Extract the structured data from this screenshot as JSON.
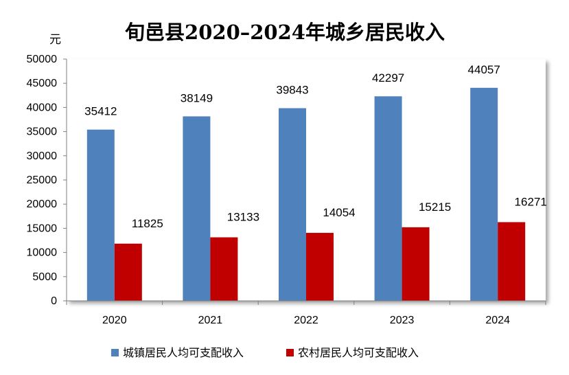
{
  "chart_data": {
    "type": "bar",
    "title": "旬邑县2020–2024年城乡居民收入",
    "unit_label": "元",
    "categories": [
      "2020",
      "2021",
      "2022",
      "2023",
      "2024"
    ],
    "series": [
      {
        "name": "城镇居民人均可支配收入",
        "color": "#4f81bd",
        "values": [
          35412,
          38149,
          39843,
          42297,
          44057
        ]
      },
      {
        "name": "农村居民人均可支配收入",
        "color": "#c00000",
        "values": [
          11825,
          13133,
          14054,
          15215,
          16271
        ]
      }
    ],
    "ylim": [
      0,
      50000
    ],
    "yticks": [
      0,
      5000,
      10000,
      15000,
      20000,
      25000,
      30000,
      35000,
      40000,
      45000,
      50000
    ],
    "grid": false,
    "legend": "bottom"
  }
}
